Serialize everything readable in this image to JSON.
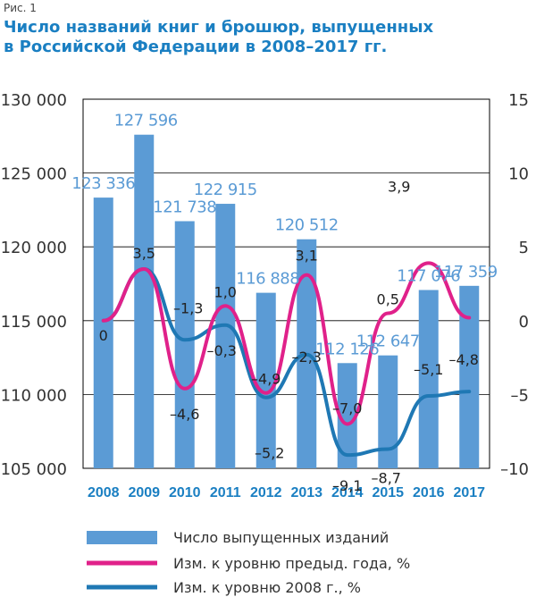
{
  "figure_label": "Рис. 1",
  "title_line1": "Число названий книг и брошюр, выпущенных",
  "title_line2": "в Российской Федерации в 2008–2017 гг.",
  "colors": {
    "bars": "#5b9bd5",
    "prev_year": "#e0218a",
    "vs_2008": "#1f78b4",
    "title": "#1a7fc2",
    "bar_labels": "#5b9bd5"
  },
  "chart_data": {
    "type": "bar",
    "categories": [
      "2008",
      "2009",
      "2010",
      "2011",
      "2012",
      "2013",
      "2014",
      "2015",
      "2016",
      "2017"
    ],
    "series": [
      {
        "name": "Число выпущенных изданий",
        "type": "bar",
        "axis": "left",
        "values": [
          123336,
          127596,
          121738,
          122915,
          116888,
          120512,
          112126,
          112647,
          117076,
          117359
        ],
        "labels": [
          "123 336",
          "127 596",
          "121 738",
          "122 915",
          "116 888",
          "120 512",
          "112 126",
          "112 647",
          "117 076",
          "117 359"
        ]
      },
      {
        "name": "Изм. к уровню предыд. года, %",
        "type": "line",
        "axis": "right",
        "values": [
          0,
          3.5,
          -4.6,
          1.0,
          -4.9,
          3.1,
          -7.0,
          0.5,
          3.9,
          0.2
        ],
        "labels": [
          "0",
          "3,5",
          "–4,6",
          "1,0",
          "–4,9",
          "3,1",
          "–7,0",
          "0,5",
          "3,9",
          ""
        ]
      },
      {
        "name": "Изм. к уровню 2008 г., %",
        "type": "line",
        "axis": "right",
        "values": [
          0,
          3.5,
          -1.3,
          -0.3,
          -5.2,
          -2.3,
          -9.1,
          -8.7,
          -5.1,
          -4.8
        ],
        "labels": [
          "",
          "",
          "–1,3",
          "–0,3",
          "–5,2",
          "–2,3",
          "–9,1",
          "–8,7",
          "–5,1",
          "–4,8"
        ]
      }
    ],
    "left_axis": {
      "ylim": [
        105000,
        130000
      ],
      "ticks": [
        105000,
        110000,
        115000,
        120000,
        125000,
        130000
      ],
      "tick_labels": [
        "105 000",
        "110 000",
        "115 000",
        "120 000",
        "125 000",
        "130 000"
      ]
    },
    "right_axis": {
      "ylim": [
        -10,
        15
      ],
      "ticks": [
        -10,
        -5,
        0,
        5,
        10,
        15
      ],
      "tick_labels": [
        "–10",
        "–5",
        "0",
        "5",
        "10",
        "15"
      ]
    },
    "grid": true,
    "legend_position": "bottom"
  }
}
